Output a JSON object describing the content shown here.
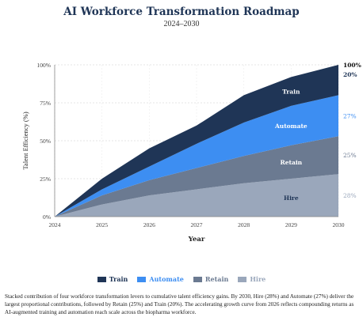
{
  "header": {
    "title": "AI Workforce Transformation Roadmap",
    "subtitle": "2024–2030"
  },
  "chart_data": {
    "type": "area",
    "stacked": true,
    "x": [
      2024,
      2025,
      2026,
      2027,
      2028,
      2029,
      2030
    ],
    "xlabel": "Year",
    "ylabel": "Talent Efficiency (%)",
    "ylim": [
      0,
      100
    ],
    "yticks": [
      "0%",
      "25%",
      "50%",
      "75%",
      "100%"
    ],
    "xticks": [
      "2024",
      "2025",
      "2026",
      "2027",
      "2028",
      "2029",
      "2030"
    ],
    "grid": true,
    "series": [
      {
        "name": "Hire",
        "color": "#9aa7bb",
        "values": [
          0,
          8,
          14,
          18,
          22,
          25,
          28
        ]
      },
      {
        "name": "Retain",
        "color": "#6b7a91",
        "values": [
          0,
          6,
          10,
          14,
          18,
          22,
          25
        ]
      },
      {
        "name": "Automate",
        "color": "#3d8ef2",
        "values": [
          0,
          4,
          9,
          16,
          22,
          26,
          27
        ]
      },
      {
        "name": "Train",
        "color": "#1f3556",
        "values": [
          0,
          7,
          12,
          12,
          18,
          19,
          20
        ]
      }
    ],
    "inner_labels": [
      "Hire",
      "Retain",
      "Automate",
      "Train"
    ],
    "end_labels": [
      {
        "text": "28%",
        "color": "#9aa7bb"
      },
      {
        "text": "25%",
        "color": "#6b7a91"
      },
      {
        "text": "27%",
        "color": "#3d8ef2"
      },
      {
        "text": "20%",
        "color": "#1f3556"
      },
      {
        "text": "100%",
        "color": "#111111"
      }
    ]
  },
  "legend": [
    {
      "label": "Train",
      "color": "#1f3556"
    },
    {
      "label": "Automate",
      "color": "#3d8ef2"
    },
    {
      "label": "Retain",
      "color": "#6b7a91"
    },
    {
      "label": "Hire",
      "color": "#9aa7bb"
    }
  ],
  "caption": "Stacked contribution of four workforce transformation levers to cumulative talent efficiency gains. By 2030, Hire (28%) and Automate (27%) deliver the largest proportional contributions, followed by Retain (25%) and Train (20%). The accelerating growth curve from 2026 reflects compounding returns as AI-augmented training and automation reach scale across the biopharma workforce."
}
